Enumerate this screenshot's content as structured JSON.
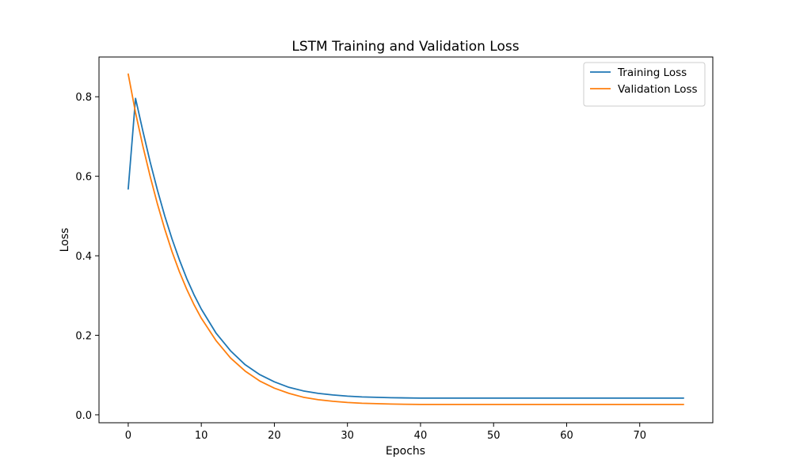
{
  "chart_data": {
    "type": "line",
    "title": "LSTM Training and Validation Loss",
    "xlabel": "Epochs",
    "ylabel": "Loss",
    "xlim": [
      -4,
      80
    ],
    "ylim": [
      -0.02,
      0.9
    ],
    "xticks": [
      0,
      10,
      20,
      30,
      40,
      50,
      60,
      70
    ],
    "yticks": [
      0.0,
      0.2,
      0.4,
      0.6,
      0.8
    ],
    "grid": false,
    "legend_position": "top-right",
    "series": [
      {
        "name": "Training Loss",
        "color": "#1f77b4",
        "x": [
          0,
          1,
          2,
          3,
          4,
          5,
          6,
          7,
          8,
          9,
          10,
          12,
          14,
          16,
          18,
          20,
          22,
          24,
          26,
          28,
          30,
          32,
          34,
          36,
          40,
          45,
          50,
          55,
          60,
          65,
          70,
          76
        ],
        "values": [
          0.568,
          0.796,
          0.714,
          0.636,
          0.565,
          0.5,
          0.442,
          0.39,
          0.343,
          0.302,
          0.266,
          0.206,
          0.161,
          0.126,
          0.101,
          0.083,
          0.069,
          0.06,
          0.054,
          0.05,
          0.047,
          0.045,
          0.044,
          0.043,
          0.042,
          0.042,
          0.042,
          0.042,
          0.042,
          0.042,
          0.042,
          0.042
        ]
      },
      {
        "name": "Validation Loss",
        "color": "#ff7f0e",
        "x": [
          0,
          1,
          2,
          3,
          4,
          5,
          6,
          7,
          8,
          9,
          10,
          12,
          14,
          16,
          18,
          20,
          22,
          24,
          26,
          28,
          30,
          32,
          34,
          36,
          40,
          45,
          50,
          55,
          60,
          65,
          70,
          76
        ],
        "values": [
          0.857,
          0.76,
          0.676,
          0.6,
          0.53,
          0.467,
          0.41,
          0.36,
          0.316,
          0.277,
          0.243,
          0.187,
          0.143,
          0.11,
          0.085,
          0.067,
          0.054,
          0.044,
          0.038,
          0.034,
          0.031,
          0.029,
          0.028,
          0.027,
          0.026,
          0.026,
          0.026,
          0.026,
          0.026,
          0.026,
          0.026,
          0.026
        ]
      }
    ]
  }
}
